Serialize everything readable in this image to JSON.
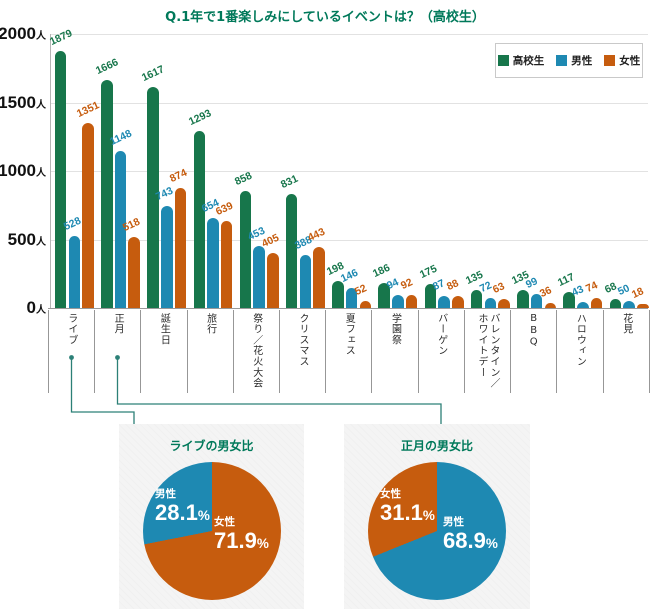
{
  "title": {
    "text": "Q.1年で1番楽しみにしているイベントは？（高校生）",
    "color": "#00795a"
  },
  "colors": {
    "highschool": "#17764b",
    "male": "#1e89b2",
    "female": "#c65c0e",
    "heading": "#00795a",
    "connector": "#2c8077"
  },
  "legend": [
    {
      "label": "高校生",
      "color": "#17764b"
    },
    {
      "label": "男性",
      "color": "#1e89b2"
    },
    {
      "label": "女性",
      "color": "#c65c0e"
    }
  ],
  "chart_data": [
    {
      "type": "bar",
      "title": "Q.1年で1番楽しみにしているイベントは？（高校生）",
      "categories": [
        "ライブ",
        "正月",
        "誕生日",
        "旅行",
        "祭り／花火大会",
        "クリスマス",
        "夏フェス",
        "学園祭",
        "バーゲン",
        "バレンタイン／ホワイトデー",
        "BBQ",
        "ハロウィン",
        "花見"
      ],
      "series": [
        {
          "name": "高校生",
          "color": "#17764b",
          "values": [
            1879,
            1666,
            1617,
            1293,
            858,
            831,
            198,
            186,
            175,
            135,
            135,
            117,
            68
          ]
        },
        {
          "name": "男性",
          "color": "#1e89b2",
          "values": [
            528,
            1148,
            743,
            654,
            453,
            388,
            146,
            94,
            87,
            72,
            99,
            43,
            50
          ]
        },
        {
          "name": "女性",
          "color": "#c65c0e",
          "values": [
            1351,
            518,
            874,
            639,
            405,
            443,
            52,
            92,
            88,
            63,
            36,
            74,
            18
          ]
        }
      ],
      "ylim": [
        0,
        2000
      ],
      "yticks": [
        0,
        500,
        1000,
        1500,
        2000
      ],
      "ytick_unit": "人",
      "legend_position": "top-right",
      "grid": true
    },
    {
      "type": "pie",
      "title": "ライブの男女比",
      "slices": [
        {
          "label": "女性",
          "value": 71.9,
          "color": "#c65c0e"
        },
        {
          "label": "男性",
          "value": 28.1,
          "color": "#1e89b2"
        }
      ]
    },
    {
      "type": "pie",
      "title": "正月の男女比",
      "slices": [
        {
          "label": "男性",
          "value": 68.9,
          "color": "#1e89b2"
        },
        {
          "label": "女性",
          "value": 31.1,
          "color": "#c65c0e"
        }
      ]
    }
  ]
}
